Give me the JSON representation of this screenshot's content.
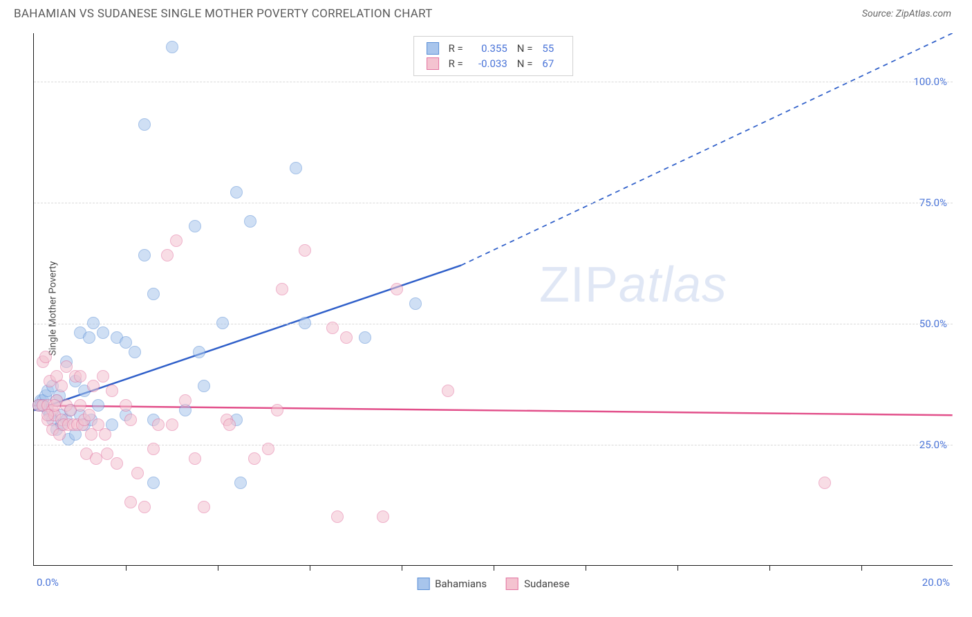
{
  "title": "BAHAMIAN VS SUDANESE SINGLE MOTHER POVERTY CORRELATION CHART",
  "source_prefix": "Source: ",
  "source_name": "ZipAtlas.com",
  "ylabel": "Single Mother Poverty",
  "watermark": "ZIPatlas",
  "chart": {
    "type": "scatter",
    "xlim": [
      0,
      20
    ],
    "ylim": [
      0,
      110
    ],
    "x_axis_labels": {
      "min": "0.0%",
      "max": "20.0%"
    },
    "y_ticks": [
      25,
      50,
      75,
      100
    ],
    "y_tick_labels": [
      "25.0%",
      "50.0%",
      "75.0%",
      "100.0%"
    ],
    "x_tick_positions": [
      2,
      4,
      6,
      8,
      10,
      12,
      14,
      16,
      18
    ],
    "background_color": "#ffffff",
    "grid_color": "#d8d8d8",
    "point_radius": 9,
    "point_opacity": 0.55,
    "series": [
      {
        "name": "Bahamians",
        "fill": "#a8c5ec",
        "stroke": "#5a8fd6",
        "R": "0.355",
        "N": "55",
        "trend": {
          "color": "#2f5fc9",
          "width": 2.5,
          "x1": 0,
          "y1": 32,
          "x2_solid": 9.3,
          "y2_solid": 62,
          "x2_dash": 20,
          "y2_dash": 110
        },
        "points": [
          [
            0.1,
            33
          ],
          [
            0.15,
            34
          ],
          [
            0.2,
            34
          ],
          [
            0.2,
            33
          ],
          [
            0.25,
            35
          ],
          [
            0.3,
            32
          ],
          [
            0.3,
            36
          ],
          [
            0.35,
            31
          ],
          [
            0.4,
            37
          ],
          [
            0.4,
            30
          ],
          [
            0.5,
            34
          ],
          [
            0.5,
            28
          ],
          [
            0.55,
            35
          ],
          [
            0.6,
            29
          ],
          [
            0.6,
            31
          ],
          [
            0.7,
            42
          ],
          [
            0.7,
            30
          ],
          [
            0.75,
            26
          ],
          [
            0.8,
            32
          ],
          [
            0.9,
            27
          ],
          [
            0.9,
            38
          ],
          [
            1.0,
            48
          ],
          [
            1.0,
            31
          ],
          [
            1.1,
            29
          ],
          [
            1.1,
            36
          ],
          [
            1.2,
            47
          ],
          [
            1.25,
            30
          ],
          [
            1.3,
            50
          ],
          [
            1.4,
            33
          ],
          [
            1.5,
            48
          ],
          [
            1.7,
            29
          ],
          [
            1.8,
            47
          ],
          [
            2.0,
            46
          ],
          [
            2.0,
            31
          ],
          [
            2.2,
            44
          ],
          [
            2.4,
            64
          ],
          [
            2.4,
            91
          ],
          [
            2.6,
            56
          ],
          [
            2.6,
            30
          ],
          [
            2.6,
            17
          ],
          [
            3.0,
            107
          ],
          [
            3.3,
            32
          ],
          [
            3.5,
            70
          ],
          [
            3.6,
            44
          ],
          [
            3.7,
            37
          ],
          [
            4.1,
            50
          ],
          [
            4.4,
            77
          ],
          [
            4.4,
            30
          ],
          [
            4.5,
            17
          ],
          [
            4.7,
            71
          ],
          [
            5.7,
            82
          ],
          [
            5.9,
            50
          ],
          [
            7.2,
            47
          ],
          [
            8.3,
            54
          ],
          [
            0.15,
            33
          ]
        ]
      },
      {
        "name": "Sudanese",
        "fill": "#f4c3d0",
        "stroke": "#e273a0",
        "R": "-0.033",
        "N": "67",
        "trend": {
          "color": "#e24f8a",
          "width": 2.5,
          "x1": 0,
          "y1": 33,
          "x2_solid": 20,
          "y2_solid": 31,
          "x2_dash": 20,
          "y2_dash": 31
        },
        "points": [
          [
            0.1,
            33
          ],
          [
            0.2,
            33
          ],
          [
            0.2,
            42
          ],
          [
            0.25,
            43
          ],
          [
            0.3,
            33
          ],
          [
            0.3,
            30
          ],
          [
            0.35,
            38
          ],
          [
            0.4,
            32
          ],
          [
            0.4,
            28
          ],
          [
            0.45,
            31
          ],
          [
            0.5,
            39
          ],
          [
            0.5,
            34
          ],
          [
            0.55,
            27
          ],
          [
            0.6,
            37
          ],
          [
            0.6,
            30
          ],
          [
            0.65,
            29
          ],
          [
            0.7,
            41
          ],
          [
            0.7,
            33
          ],
          [
            0.75,
            29
          ],
          [
            0.8,
            32
          ],
          [
            0.85,
            29
          ],
          [
            0.9,
            39
          ],
          [
            0.95,
            29
          ],
          [
            1.0,
            39
          ],
          [
            1.0,
            33
          ],
          [
            1.05,
            29
          ],
          [
            1.1,
            30
          ],
          [
            1.15,
            23
          ],
          [
            1.2,
            31
          ],
          [
            1.25,
            27
          ],
          [
            1.3,
            37
          ],
          [
            1.35,
            22
          ],
          [
            1.4,
            29
          ],
          [
            1.5,
            39
          ],
          [
            1.55,
            27
          ],
          [
            1.6,
            23
          ],
          [
            1.7,
            36
          ],
          [
            1.8,
            21
          ],
          [
            2.0,
            33
          ],
          [
            2.1,
            30
          ],
          [
            2.1,
            13
          ],
          [
            2.25,
            19
          ],
          [
            2.4,
            12
          ],
          [
            2.6,
            24
          ],
          [
            2.7,
            29
          ],
          [
            2.9,
            64
          ],
          [
            3.0,
            29
          ],
          [
            3.1,
            67
          ],
          [
            3.3,
            34
          ],
          [
            3.5,
            22
          ],
          [
            3.7,
            12
          ],
          [
            4.2,
            30
          ],
          [
            4.25,
            29
          ],
          [
            4.8,
            22
          ],
          [
            5.1,
            24
          ],
          [
            5.3,
            32
          ],
          [
            5.4,
            57
          ],
          [
            5.9,
            65
          ],
          [
            6.5,
            49
          ],
          [
            6.6,
            10
          ],
          [
            6.8,
            47
          ],
          [
            7.6,
            10
          ],
          [
            7.9,
            57
          ],
          [
            9.0,
            36
          ],
          [
            17.2,
            17
          ],
          [
            0.3,
            31
          ],
          [
            0.45,
            33
          ]
        ]
      }
    ]
  },
  "legend": {
    "r_label": "R =",
    "n_label": "N ="
  }
}
